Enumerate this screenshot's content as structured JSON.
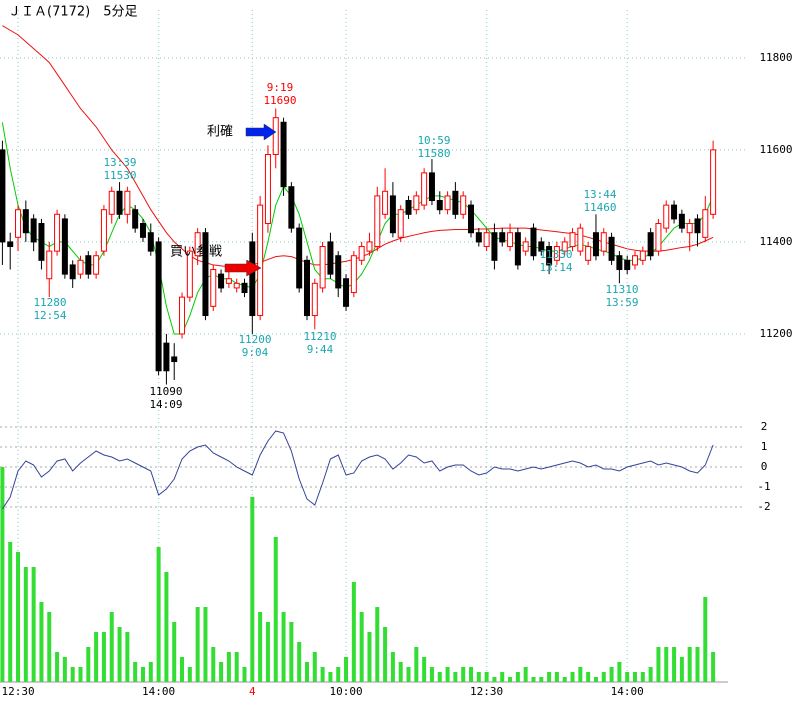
{
  "chart_data": [
    {
      "type": "candlestick",
      "title": "ＪＩＡ(7172)　5分足",
      "categories": [
        null,
        null,
        "12:30",
        null,
        null,
        null,
        null,
        null,
        null,
        null,
        null,
        null,
        null,
        null,
        null,
        null,
        null,
        null,
        null,
        null,
        "14:00",
        null,
        null,
        null,
        null,
        null,
        null,
        null,
        null,
        null,
        null,
        null,
        "4",
        null,
        null,
        null,
        null,
        null,
        null,
        null,
        null,
        null,
        null,
        null,
        "10:00",
        null,
        null,
        null,
        null,
        null,
        null,
        null,
        null,
        null,
        null,
        null,
        null,
        null,
        null,
        null,
        null,
        null,
        "12:30",
        null,
        null,
        null,
        null,
        null,
        null,
        null,
        null,
        null,
        null,
        null,
        null,
        null,
        null,
        null,
        null,
        null,
        "14:00",
        null,
        null,
        null,
        null,
        null,
        null,
        null,
        null,
        null,
        null,
        null
      ],
      "open": [
        11600,
        11400,
        11410,
        11470,
        11450,
        11440,
        11320,
        11380,
        11450,
        11350,
        11330,
        11370,
        11330,
        11380,
        11460,
        11510,
        11460,
        11470,
        11440,
        11420,
        11400,
        11180,
        11150,
        11200,
        11280,
        11370,
        11420,
        11260,
        11330,
        11310,
        11300,
        11310,
        11400,
        11240,
        11440,
        11590,
        11660,
        11520,
        11430,
        11360,
        11240,
        11300,
        11400,
        11370,
        11320,
        11290,
        11360,
        11380,
        11390,
        11460,
        11500,
        11410,
        11490,
        11470,
        11480,
        11550,
        11490,
        11470,
        11510,
        11460,
        11480,
        11420,
        11390,
        11420,
        11420,
        11390,
        11420,
        11380,
        11430,
        11400,
        11390,
        11360,
        11380,
        11390,
        11380,
        11360,
        11420,
        11380,
        11410,
        11370,
        11360,
        11350,
        11360,
        11420,
        11380,
        11430,
        11480,
        11460,
        11420,
        11450,
        11410,
        11460
      ],
      "high": [
        11620,
        11420,
        11480,
        11490,
        11460,
        11450,
        11400,
        11470,
        11460,
        11360,
        11370,
        11380,
        11380,
        11480,
        11520,
        11530,
        11520,
        11480,
        11450,
        11440,
        11410,
        11200,
        11180,
        11290,
        11390,
        11430,
        11430,
        11350,
        11340,
        11340,
        11320,
        11320,
        11420,
        11500,
        11610,
        11690,
        11670,
        11530,
        11440,
        11370,
        11320,
        11400,
        11420,
        11380,
        11330,
        11380,
        11400,
        11420,
        11520,
        11560,
        11530,
        11480,
        11500,
        11510,
        11560,
        11580,
        11510,
        11510,
        11530,
        11510,
        11490,
        11430,
        11430,
        11440,
        11430,
        11440,
        11430,
        11410,
        11440,
        11410,
        11400,
        11400,
        11410,
        11430,
        11440,
        11400,
        11460,
        11430,
        11420,
        11380,
        11370,
        11380,
        11390,
        11430,
        11450,
        11490,
        11490,
        11470,
        11450,
        11460,
        11500,
        11620
      ],
      "low": [
        11350,
        11340,
        11380,
        11400,
        11380,
        11340,
        11280,
        11370,
        11320,
        11300,
        11320,
        11320,
        11320,
        11370,
        11440,
        11450,
        11440,
        11420,
        11400,
        11370,
        11110,
        11090,
        11100,
        11190,
        11270,
        11350,
        11230,
        11250,
        11290,
        11300,
        11290,
        11280,
        11200,
        11230,
        11420,
        11560,
        11500,
        11420,
        11290,
        11230,
        11210,
        11290,
        11320,
        11280,
        11250,
        11280,
        11350,
        11370,
        11380,
        11450,
        11410,
        11400,
        11450,
        11460,
        11470,
        11480,
        11460,
        11460,
        11450,
        11450,
        11410,
        11390,
        11380,
        11340,
        11390,
        11380,
        11340,
        11370,
        11360,
        11370,
        11330,
        11350,
        11370,
        11380,
        11370,
        11350,
        11360,
        11370,
        11350,
        11310,
        11330,
        11340,
        11350,
        11360,
        11370,
        11420,
        11440,
        11420,
        11380,
        11390,
        11400,
        11450
      ],
      "close": [
        11400,
        11390,
        11470,
        11420,
        11400,
        11360,
        11380,
        11460,
        11330,
        11320,
        11360,
        11330,
        11370,
        11470,
        11510,
        11460,
        11510,
        11430,
        11410,
        11380,
        11120,
        11120,
        11140,
        11280,
        11380,
        11420,
        11240,
        11340,
        11300,
        11320,
        11310,
        11290,
        11240,
        11480,
        11590,
        11670,
        11520,
        11430,
        11300,
        11240,
        11310,
        11390,
        11330,
        11300,
        11260,
        11370,
        11390,
        11400,
        11500,
        11510,
        11420,
        11470,
        11460,
        11500,
        11550,
        11490,
        11470,
        11500,
        11460,
        11500,
        11420,
        11400,
        11420,
        11360,
        11400,
        11420,
        11350,
        11400,
        11370,
        11380,
        11350,
        11390,
        11400,
        11420,
        11430,
        11390,
        11370,
        11420,
        11360,
        11340,
        11340,
        11370,
        11380,
        11370,
        11440,
        11480,
        11450,
        11430,
        11440,
        11420,
        11470,
        11600
      ],
      "up_color": "#ff0000",
      "down_color": "#000000",
      "overlays": [
        {
          "color": "#ee1111",
          "values": [
            11870,
            11860,
            11850,
            11835,
            11820,
            11805,
            11790,
            11765,
            11740,
            11715,
            11690,
            11670,
            11650,
            11625,
            11600,
            11580,
            11560,
            11530,
            11500,
            11470,
            11445,
            11420,
            11400,
            11385,
            11370,
            11360,
            11355,
            11350,
            11348,
            11346,
            11345,
            11345,
            11350,
            11355,
            11362,
            11368,
            11370,
            11368,
            11362,
            11355,
            11350,
            11350,
            11352,
            11355,
            11358,
            11362,
            11368,
            11375,
            11385,
            11395,
            11402,
            11408,
            11412,
            11416,
            11420,
            11423,
            11425,
            11426,
            11427,
            11427,
            11427,
            11428,
            11428,
            11429,
            11430,
            11430,
            11430,
            11430,
            11428,
            11426,
            11424,
            11422,
            11420,
            11418,
            11415,
            11410,
            11405,
            11400,
            11395,
            11390,
            11385,
            11382,
            11380,
            11380,
            11380,
            11382,
            11385,
            11388,
            11390,
            11395,
            11402,
            11410
          ]
        },
        {
          "color": "#00cc00",
          "values": [
            11660,
            11560,
            11480,
            11430,
            11410,
            11400,
            11390,
            11400,
            11400,
            11380,
            11360,
            11350,
            11350,
            11380,
            11420,
            11460,
            11480,
            11470,
            11450,
            11420,
            11350,
            11260,
            11200,
            11200,
            11240,
            11290,
            11320,
            11330,
            11320,
            11320,
            11310,
            11305,
            11300,
            11330,
            11400,
            11480,
            11520,
            11500,
            11460,
            11400,
            11340,
            11320,
            11320,
            11310,
            11300,
            11310,
            11330,
            11360,
            11400,
            11440,
            11460,
            11460,
            11470,
            11480,
            11490,
            11500,
            11500,
            11495,
            11490,
            11485,
            11470,
            11450,
            11430,
            11410,
            11405,
            11400,
            11395,
            11390,
            11390,
            11385,
            11380,
            11380,
            11385,
            11390,
            11395,
            11390,
            11385,
            11380,
            11375,
            11365,
            11360,
            11360,
            11365,
            11375,
            11390,
            11410,
            11430,
            11440,
            11440,
            11440,
            11460,
            11500
          ]
        }
      ],
      "ylim": [
        11013,
        11904
      ],
      "yticks": [
        11200,
        11400,
        11600,
        11800
      ],
      "grid": true,
      "grid_color": "#88cccc",
      "annotations": [
        {
          "text": [
            "11280",
            "12:54"
          ],
          "color": "#1aa6b0"
        },
        {
          "text": [
            "13:39",
            "11530"
          ],
          "color": "#1aa6b0"
        },
        {
          "text": [
            "11090",
            "14:09"
          ],
          "color": "#000000"
        },
        {
          "text": [
            "11200",
            "9:04"
          ],
          "color": "#1aa6b0"
        },
        {
          "text": [
            "9:19",
            "11690"
          ],
          "color": "#ff0000"
        },
        {
          "text": [
            "11210",
            "9:44"
          ],
          "color": "#1aa6b0"
        },
        {
          "text": [
            "10:59",
            "11580"
          ],
          "color": "#1aa6b0"
        },
        {
          "text": [
            "11330",
            "13:14"
          ],
          "color": "#1aa6b0"
        },
        {
          "text": [
            "13:44",
            "11460"
          ],
          "color": "#1aa6b0"
        },
        {
          "text": [
            "11310",
            "13:59"
          ],
          "color": "#1aa6b0"
        }
      ],
      "markers": [
        {
          "text": "利確",
          "arrow_color": "#0022ee"
        },
        {
          "text": "買い参戦",
          "arrow_color": "#ee0000"
        }
      ]
    },
    {
      "type": "line",
      "color": "#334499",
      "values": [
        -2.1,
        -1.5,
        -0.2,
        0.3,
        0.1,
        -0.5,
        -0.2,
        0.3,
        0.4,
        -0.2,
        0.2,
        0.5,
        0.8,
        0.6,
        0.5,
        0.3,
        0.4,
        0.2,
        0,
        -0.2,
        -1.4,
        -1.1,
        -0.6,
        0.4,
        0.8,
        1.0,
        1.1,
        0.7,
        0.5,
        0.3,
        0,
        -0.2,
        -0.4,
        0.6,
        1.3,
        1.8,
        1.7,
        0.8,
        -0.6,
        -1.6,
        -1.9,
        -0.8,
        0.4,
        0.6,
        -0.4,
        -0.3,
        0.3,
        0.5,
        0.6,
        0.4,
        -0.1,
        0.2,
        0.6,
        0.5,
        0.2,
        0.3,
        -0.2,
        0,
        0.1,
        0.1,
        -0.2,
        -0.4,
        -0.3,
        0,
        -0.1,
        -0.1,
        -0.2,
        -0.1,
        0,
        -0.1,
        0,
        0.1,
        0.2,
        0.3,
        0.2,
        0,
        0.1,
        -0.1,
        -0.1,
        -0.2,
        0,
        0.1,
        0.2,
        0.3,
        0.1,
        0.2,
        0.1,
        0,
        -0.2,
        -0.3,
        0.1,
        1.1
      ],
      "ylim": [
        -2.35,
        2.35
      ],
      "yticks": [
        2,
        1,
        0,
        -1,
        -2
      ]
    },
    {
      "type": "bar",
      "color": "#33dd33",
      "values": [
        215,
        140,
        130,
        115,
        115,
        80,
        70,
        30,
        25,
        15,
        15,
        35,
        50,
        50,
        70,
        55,
        50,
        20,
        15,
        20,
        135,
        110,
        60,
        25,
        15,
        75,
        75,
        35,
        20,
        30,
        30,
        15,
        185,
        70,
        60,
        145,
        70,
        60,
        40,
        20,
        30,
        15,
        10,
        15,
        25,
        100,
        70,
        50,
        75,
        55,
        30,
        20,
        15,
        35,
        25,
        15,
        10,
        15,
        10,
        15,
        15,
        10,
        10,
        5,
        10,
        5,
        10,
        15,
        5,
        5,
        10,
        10,
        5,
        10,
        15,
        10,
        5,
        10,
        15,
        20,
        10,
        10,
        10,
        15,
        35,
        35,
        35,
        25,
        35,
        35,
        85,
        30
      ],
      "ylim": [
        0,
        215
      ]
    }
  ]
}
